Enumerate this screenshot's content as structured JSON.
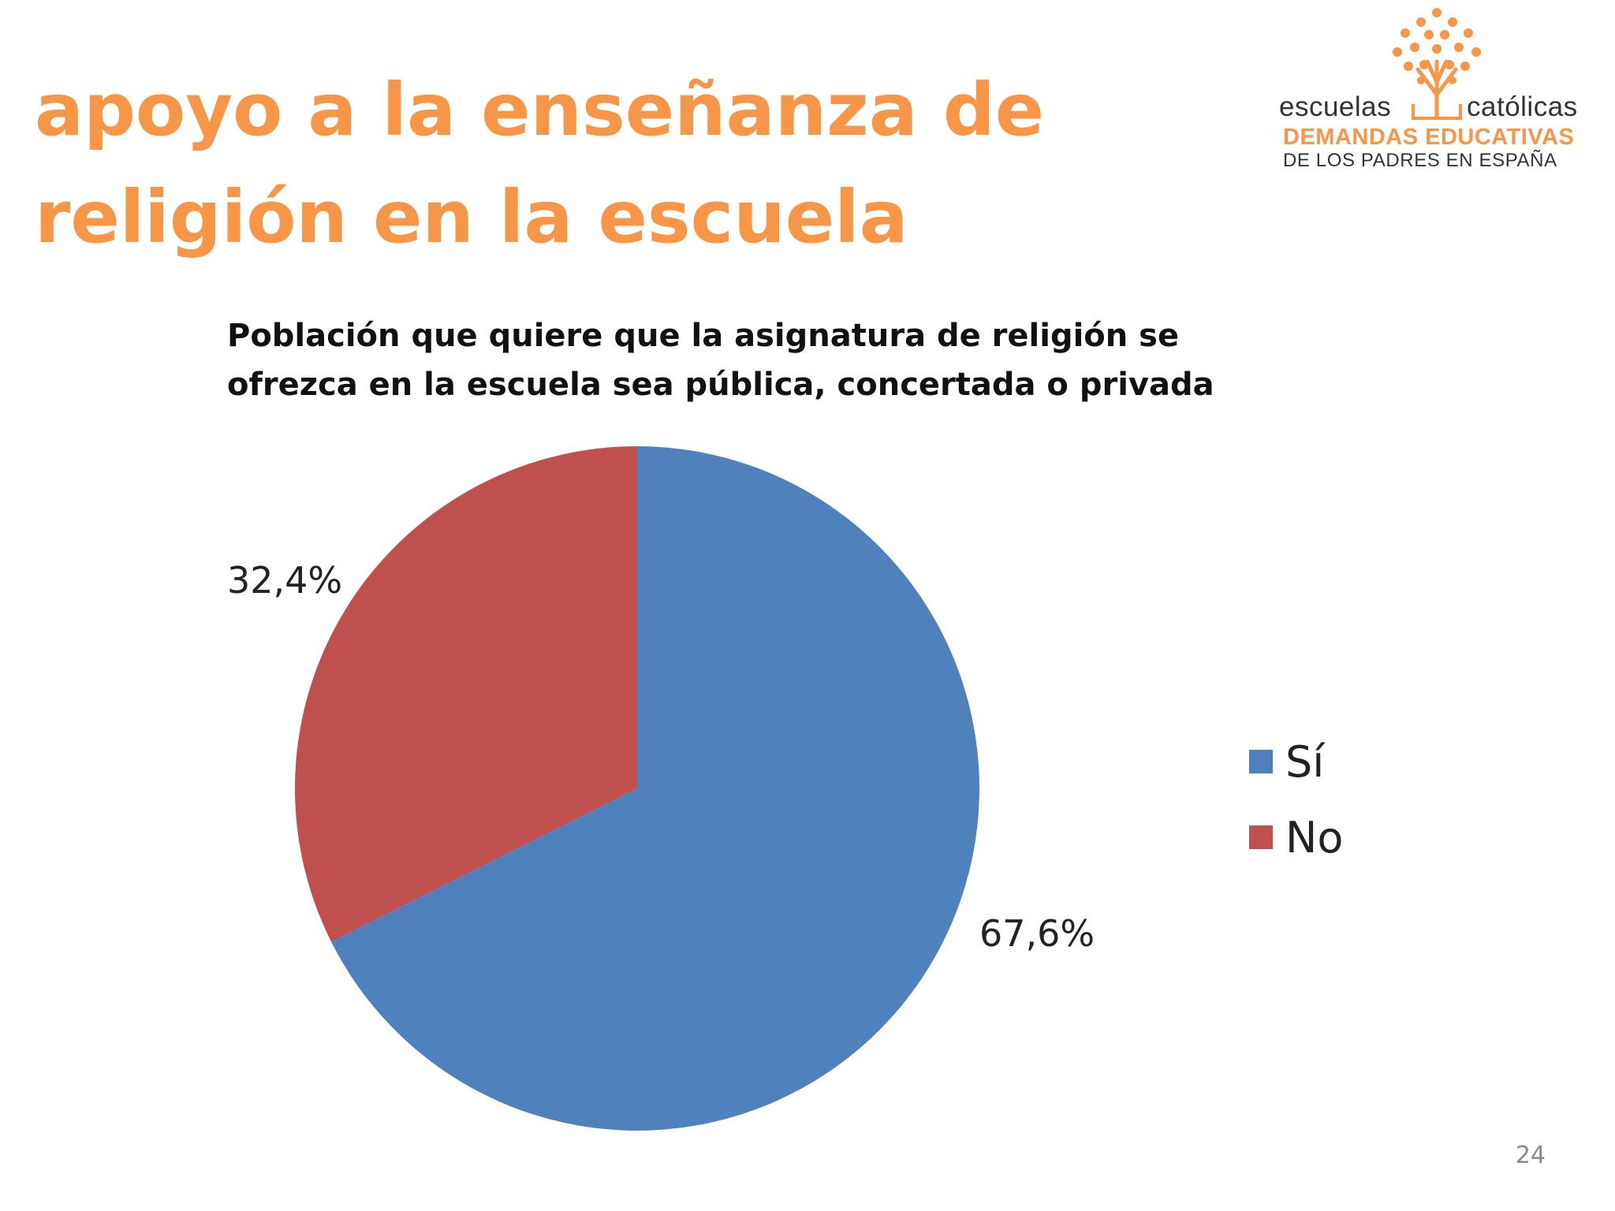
{
  "slide": {
    "title_line1": "apoyo a la enseñanza de",
    "title_line2": "religión en la escuela",
    "page_number": "24",
    "accent_color": "#f79646"
  },
  "logo": {
    "word_left": "escuelas",
    "word_right": "católicas",
    "subtitle_line1": "DEMANDAS EDUCATIVAS",
    "subtitle_line2": "DE LOS PADRES EN ESPAÑA",
    "icon": "tree-icon"
  },
  "chart_data": {
    "type": "pie",
    "title_line1": "Población que quiere que la asignatura de religión se",
    "title_line2": "ofrezca en la escuela sea pública, concertada o privada",
    "slices": [
      {
        "name": "Sí",
        "value": 67.6,
        "label": "67,6%",
        "color": "#4f81bd"
      },
      {
        "name": "No",
        "value": 32.4,
        "label": "32,4%",
        "color": "#c0504d"
      }
    ],
    "legend_position": "right"
  }
}
